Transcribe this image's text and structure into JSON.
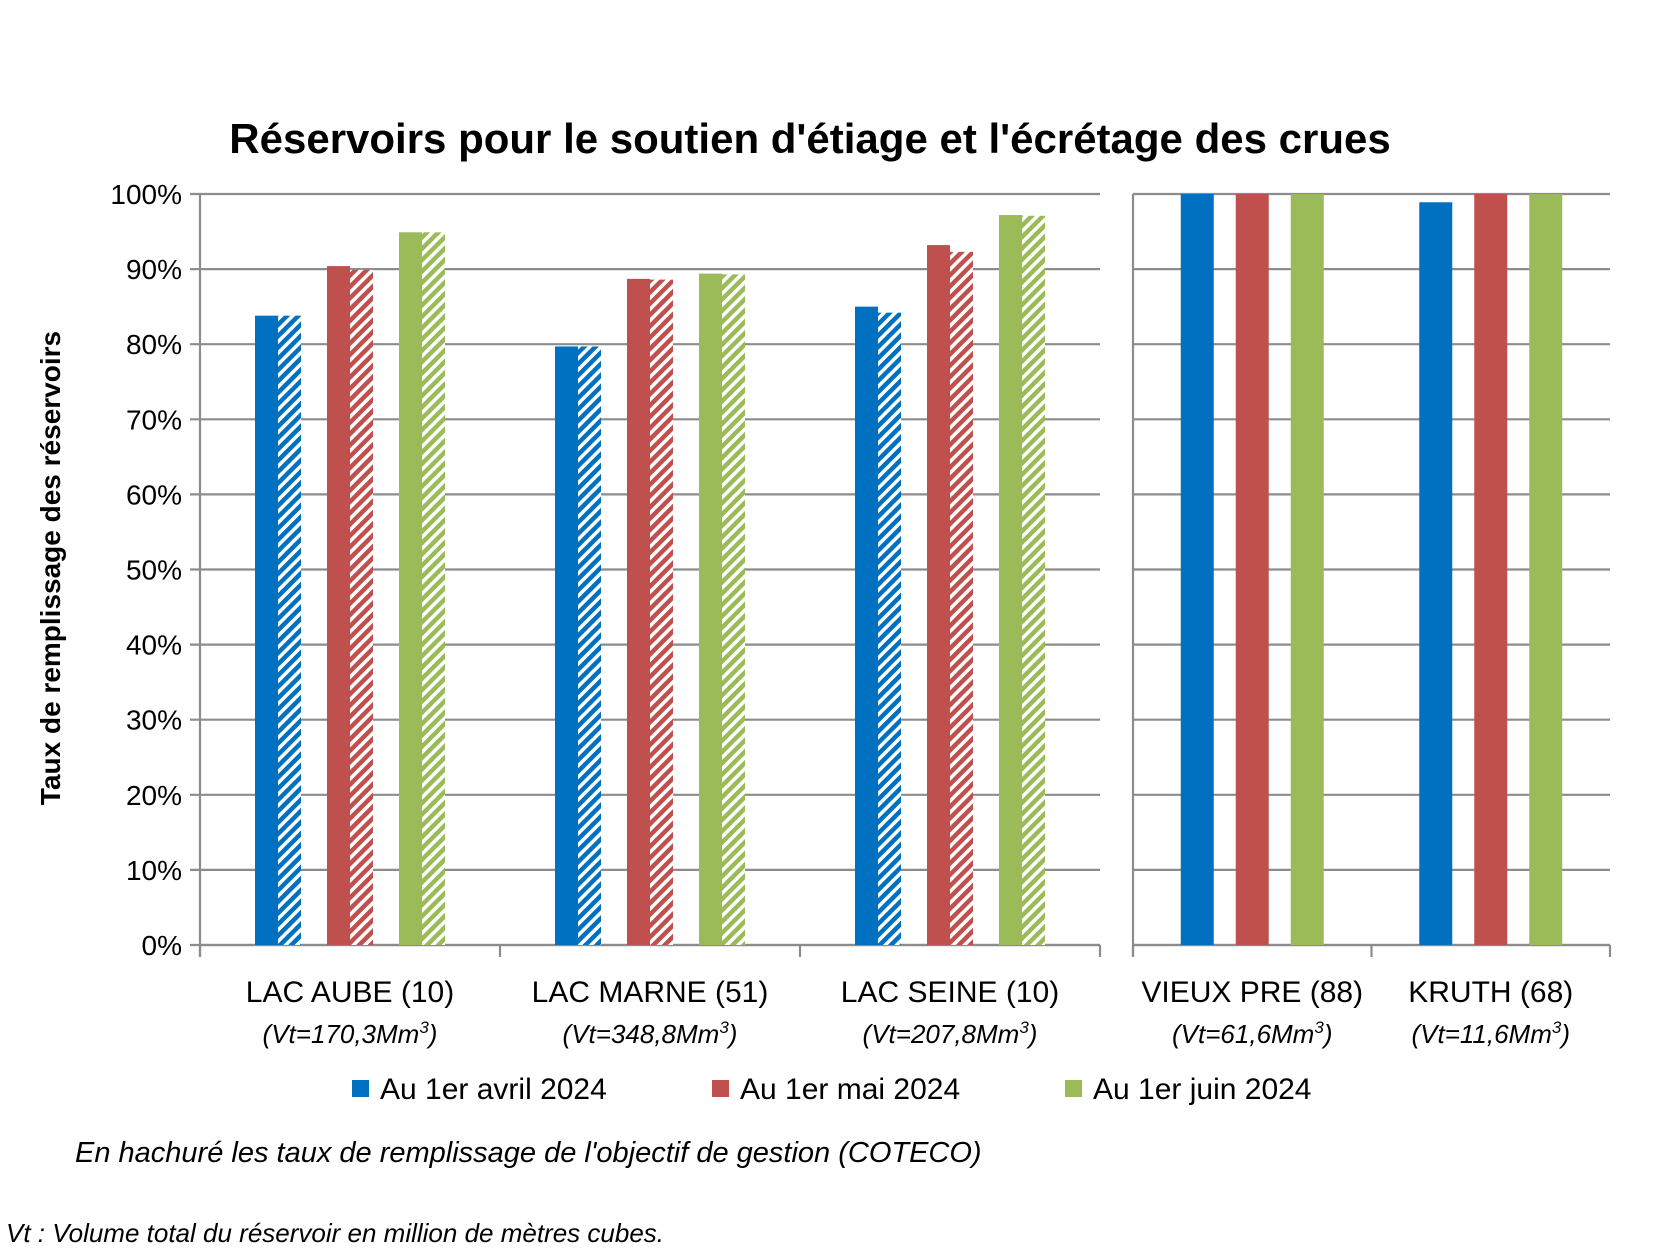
{
  "chart_data": {
    "type": "bar",
    "title": "Réservoirs pour le soutien d'étiage et l'écrétage des crues",
    "ylabel": "Taux de remplissage des réservoirs",
    "ylim": [
      0,
      100
    ],
    "yticks": [
      "0%",
      "10%",
      "20%",
      "30%",
      "40%",
      "50%",
      "60%",
      "70%",
      "80%",
      "90%",
      "100%"
    ],
    "panels": [
      {
        "categories": [
          {
            "name": "LAC AUBE (10)",
            "volume": "(Vt=170,3Mm",
            "volume_sup": "3",
            "volume_end": ")"
          },
          {
            "name": "LAC MARNE (51)",
            "volume": "(Vt=348,8Mm",
            "volume_sup": "3",
            "volume_end": ")"
          },
          {
            "name": "LAC SEINE (10)",
            "volume": "(Vt=207,8Mm",
            "volume_sup": "3",
            "volume_end": ")"
          }
        ],
        "series": [
          {
            "name": "Au 1er avril 2024",
            "values": [
              83.8,
              79.7,
              85.0
            ],
            "objective": [
              83.8,
              79.7,
              84.2
            ]
          },
          {
            "name": "Au 1er mai 2024",
            "values": [
              90.4,
              88.7,
              93.2
            ],
            "objective": [
              89.9,
              88.6,
              92.3
            ]
          },
          {
            "name": "Au 1er juin 2024",
            "values": [
              94.9,
              89.4,
              97.2
            ],
            "objective": [
              94.9,
              89.3,
              97.1
            ]
          }
        ]
      },
      {
        "categories": [
          {
            "name": "VIEUX PRE (88)",
            "volume": "(Vt=61,6Mm",
            "volume_sup": "3",
            "volume_end": ")"
          },
          {
            "name": "KRUTH (68)",
            "volume": "(Vt=11,6Mm",
            "volume_sup": "3",
            "volume_end": ")"
          }
        ],
        "series": [
          {
            "name": "Au 1er avril 2024",
            "values": [
              100.0,
              98.9
            ]
          },
          {
            "name": "Au 1er mai 2024",
            "values": [
              100.0,
              100.0
            ]
          },
          {
            "name": "Au 1er juin 2024",
            "values": [
              100.0,
              100.0
            ]
          }
        ]
      }
    ],
    "colors": [
      "#0070C0",
      "#C0504D",
      "#9BBB59"
    ],
    "grid": true,
    "legend_position": "bottom",
    "note": "En hachuré les taux de remplissage de l'objectif de gestion (COTECO)",
    "footnote": "Vt : Volume total du réservoir en million de mètres cubes."
  }
}
